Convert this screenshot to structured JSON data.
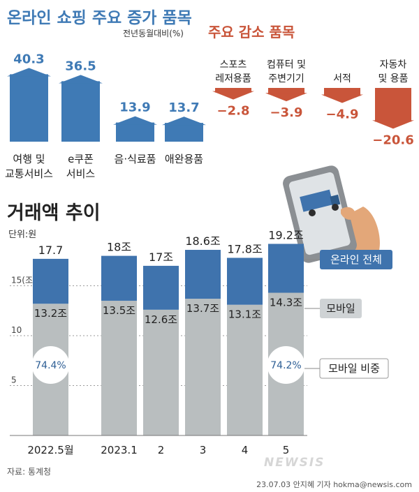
{
  "increase": {
    "title": "온라인 쇼핑 주요 증가 품목",
    "unit": "전년동월대비(%)",
    "color": "#3f7ab5",
    "items": [
      {
        "label_lines": [
          "여행 및",
          "교통서비스"
        ],
        "value": 40.3
      },
      {
        "label_lines": [
          "e쿠폰",
          "서비스"
        ],
        "value": 36.5
      },
      {
        "label_lines": [
          "음·식료품"
        ],
        "value": 13.9
      },
      {
        "label_lines": [
          "애완용품"
        ],
        "value": 13.7
      }
    ]
  },
  "decrease": {
    "title": "주요 감소 품목",
    "color": "#c9553a",
    "items": [
      {
        "label_lines": [
          "스포츠",
          "레저용품"
        ],
        "value": -2.8
      },
      {
        "label_lines": [
          "컴퓨터 및",
          "주변기기"
        ],
        "value": -3.9
      },
      {
        "label_lines": [
          "서적"
        ],
        "value": -4.9
      },
      {
        "label_lines": [
          "자동차",
          "및 용품"
        ],
        "value": -20.6
      }
    ]
  },
  "chart_data": [
    {
      "type": "bar",
      "title": "온라인 쇼핑 주요 증가 품목",
      "ylabel": "전년동월대비(%)",
      "categories": [
        "여행 및 교통서비스",
        "e쿠폰 서비스",
        "음·식료품",
        "애완용품"
      ],
      "values": [
        40.3,
        36.5,
        13.9,
        13.7
      ]
    },
    {
      "type": "bar",
      "title": "주요 감소 품목",
      "categories": [
        "스포츠 레저용품",
        "컴퓨터 및 주변기기",
        "서적",
        "자동차 및 용품"
      ],
      "values": [
        -2.8,
        -3.9,
        -4.9,
        -20.6
      ]
    },
    {
      "type": "bar",
      "title": "거래액 추이",
      "unit": "단위:원",
      "categories": [
        "2022.5월",
        "2023.1",
        "2",
        "3",
        "4",
        "5"
      ],
      "series": [
        {
          "name": "온라인 전체",
          "values": [
            17.7,
            18,
            17,
            18.6,
            17.8,
            19.2
          ],
          "labels": [
            "17.7",
            "18조",
            "17조",
            "18.6조",
            "17.8조",
            "19.2조"
          ]
        },
        {
          "name": "모바일",
          "values": [
            13.2,
            13.5,
            12.6,
            13.7,
            13.1,
            14.3
          ],
          "labels": [
            "13.2조",
            "13.5조",
            "12.6조",
            "13.7조",
            "13.1조",
            "14.3조"
          ]
        }
      ],
      "mobile_share": [
        {
          "category": "2022.5월",
          "label": "74.4%"
        },
        {
          "category": "5",
          "label": "74.2%"
        }
      ],
      "y_ticks": [
        "5",
        "10",
        "15(조)"
      ],
      "ylim": [
        0,
        21
      ],
      "legend": [
        "온라인 전체",
        "모바일",
        "모바일 비중"
      ]
    }
  ],
  "trend": {
    "title": "거래액 추이",
    "unit": "단위:원",
    "total_color": "#3f73ad",
    "mobile_color": "#b9bebf",
    "legend_total": "온라인 전체",
    "legend_mobile": "모바일",
    "legend_share": "모바일 비중"
  },
  "source": "자료: 통계청",
  "credit": "23.07.03 안지혜 기자 hokma@newsis.com",
  "watermark": "NEWSIS"
}
